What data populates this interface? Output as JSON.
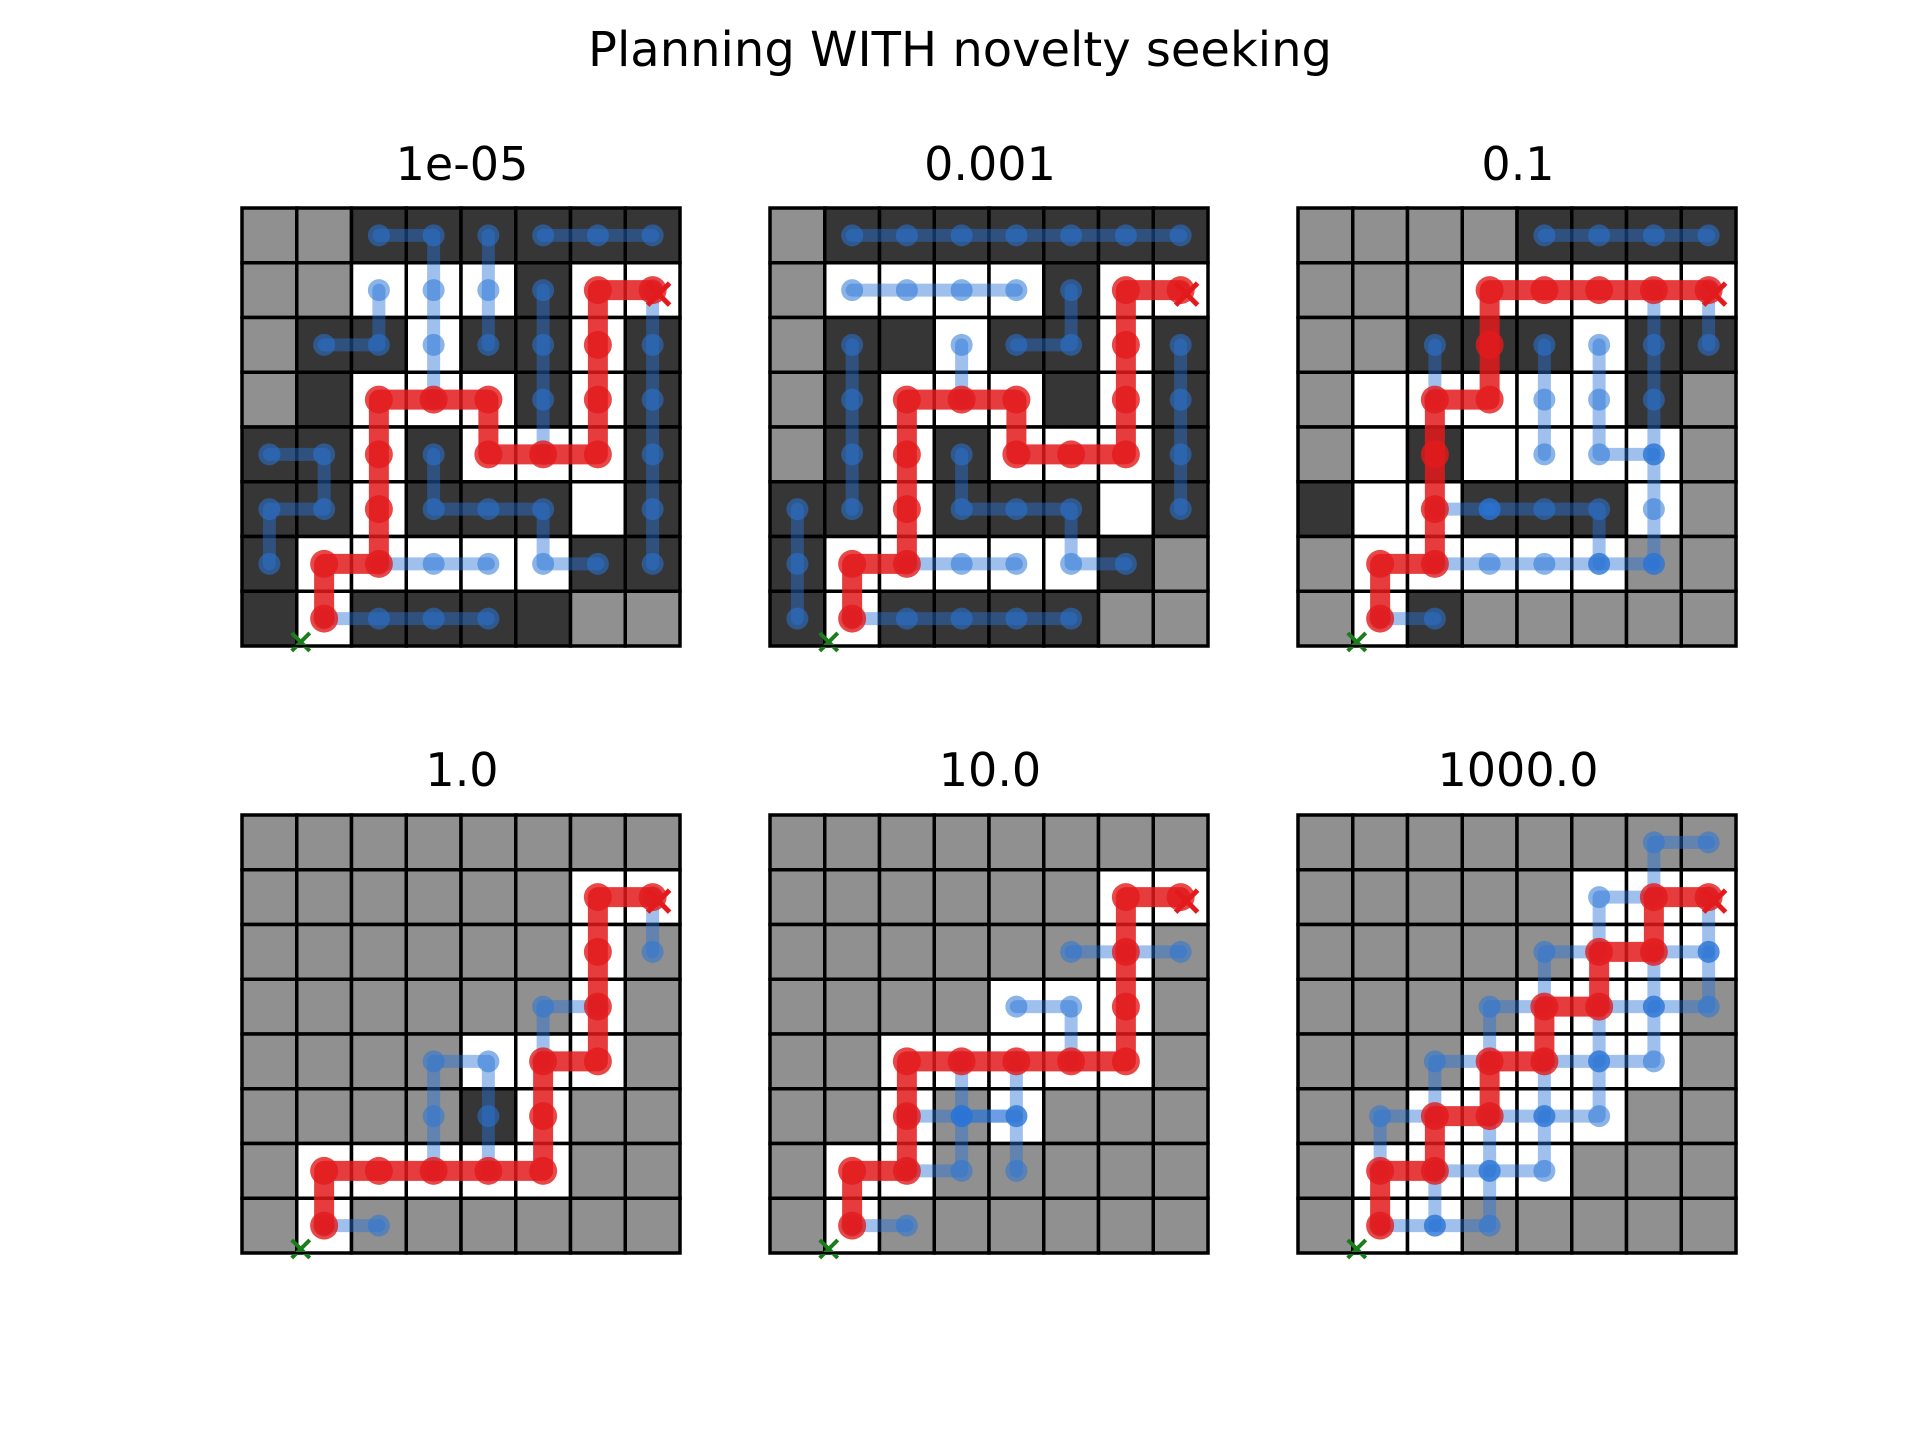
{
  "figure": {
    "title": "Planning WITH novelty seeking"
  },
  "grid": {
    "rows": 8,
    "cols": 8
  },
  "colors": {
    "wall": "#363636",
    "unexplored": "#909090",
    "free": "#ffffff",
    "gridline": "#000000",
    "explored_path": "#2a74d6",
    "final_path": "#e31a1c",
    "start_marker": "#1a7d1a",
    "goal_marker": "#e31a1c"
  },
  "panels": [
    {
      "label": "1e-05",
      "cells": [
        "UUWWWWWW",
        "UUFFFWFF",
        "UWWFWWFW",
        "UWFFFWFW",
        "WWFWFFFW",
        "WWFWWWFW",
        "WFFFFFWW",
        "WFWWWWUU"
      ],
      "final_path": [
        [
          1,
          7
        ],
        [
          1,
          6
        ],
        [
          2,
          6
        ],
        [
          2,
          5
        ],
        [
          2,
          4
        ],
        [
          2,
          3
        ],
        [
          3,
          3
        ],
        [
          4,
          3
        ],
        [
          4,
          4
        ],
        [
          5,
          4
        ],
        [
          6,
          4
        ],
        [
          6,
          3
        ],
        [
          6,
          2
        ],
        [
          6,
          1
        ],
        [
          7,
          1
        ]
      ],
      "explored_paths": [
        [
          [
            2,
            0
          ],
          [
            3,
            0
          ],
          [
            3,
            1
          ],
          [
            3,
            2
          ],
          [
            3,
            3
          ]
        ],
        [
          [
            2,
            1
          ],
          [
            2,
            2
          ],
          [
            1,
            2
          ]
        ],
        [
          [
            4,
            0
          ],
          [
            4,
            1
          ],
          [
            4,
            2
          ]
        ],
        [
          [
            5,
            0
          ],
          [
            6,
            0
          ],
          [
            7,
            0
          ]
        ],
        [
          [
            5,
            1
          ],
          [
            5,
            2
          ],
          [
            5,
            3
          ],
          [
            5,
            4
          ]
        ],
        [
          [
            7,
            1
          ],
          [
            7,
            2
          ],
          [
            7,
            3
          ],
          [
            7,
            4
          ],
          [
            7,
            5
          ],
          [
            7,
            6
          ]
        ],
        [
          [
            0,
            4
          ],
          [
            1,
            4
          ],
          [
            1,
            5
          ],
          [
            0,
            5
          ],
          [
            0,
            6
          ]
        ],
        [
          [
            1,
            7
          ],
          [
            2,
            7
          ],
          [
            3,
            7
          ],
          [
            4,
            7
          ]
        ],
        [
          [
            3,
            4
          ],
          [
            3,
            5
          ],
          [
            4,
            5
          ],
          [
            5,
            5
          ],
          [
            5,
            6
          ],
          [
            6,
            6
          ]
        ],
        [
          [
            4,
            6
          ],
          [
            3,
            6
          ],
          [
            2,
            6
          ]
        ]
      ],
      "start": [
        1,
        7
      ],
      "goal": [
        7,
        1
      ]
    },
    {
      "label": "0.001",
      "cells": [
        "UWWWWWWW",
        "UFFFFWFF",
        "UWWFWWFW",
        "UWFFFWFW",
        "UWFWFFFW",
        "WWFWWWFW",
        "WFFFFFWU",
        "WFWWWWUU"
      ],
      "final_path": [
        [
          1,
          7
        ],
        [
          1,
          6
        ],
        [
          2,
          6
        ],
        [
          2,
          5
        ],
        [
          2,
          4
        ],
        [
          2,
          3
        ],
        [
          3,
          3
        ],
        [
          4,
          3
        ],
        [
          4,
          4
        ],
        [
          5,
          4
        ],
        [
          6,
          4
        ],
        [
          6,
          3
        ],
        [
          6,
          2
        ],
        [
          6,
          1
        ],
        [
          7,
          1
        ]
      ],
      "explored_paths": [
        [
          [
            1,
            0
          ],
          [
            2,
            0
          ],
          [
            3,
            0
          ],
          [
            4,
            0
          ],
          [
            5,
            0
          ],
          [
            6,
            0
          ],
          [
            7,
            0
          ]
        ],
        [
          [
            1,
            1
          ],
          [
            2,
            1
          ],
          [
            3,
            1
          ],
          [
            4,
            1
          ]
        ],
        [
          [
            1,
            2
          ],
          [
            1,
            3
          ],
          [
            1,
            4
          ],
          [
            1,
            5
          ]
        ],
        [
          [
            0,
            5
          ],
          [
            0,
            6
          ],
          [
            0,
            7
          ]
        ],
        [
          [
            1,
            7
          ],
          [
            2,
            7
          ],
          [
            3,
            7
          ],
          [
            4,
            7
          ],
          [
            5,
            7
          ]
        ],
        [
          [
            3,
            2
          ],
          [
            3,
            3
          ]
        ],
        [
          [
            3,
            4
          ],
          [
            3,
            5
          ],
          [
            4,
            5
          ],
          [
            5,
            5
          ],
          [
            5,
            6
          ],
          [
            6,
            6
          ]
        ],
        [
          [
            4,
            6
          ],
          [
            3,
            6
          ],
          [
            2,
            6
          ]
        ],
        [
          [
            5,
            1
          ],
          [
            5,
            2
          ],
          [
            4,
            2
          ]
        ],
        [
          [
            7,
            2
          ],
          [
            7,
            3
          ],
          [
            7,
            4
          ],
          [
            7,
            5
          ]
        ]
      ],
      "start": [
        1,
        7
      ],
      "goal": [
        7,
        1
      ]
    },
    {
      "label": "0.1",
      "cells": [
        "UUUUWWWW",
        "UUUFFFFF",
        "UUWWWFWW",
        "UFFFFFWU",
        "UFWFFFFU",
        "WFFWWWFU",
        "UFFFFFUU",
        "UFWUUUUU"
      ],
      "final_path": [
        [
          1,
          7
        ],
        [
          1,
          6
        ],
        [
          2,
          6
        ],
        [
          2,
          5
        ],
        [
          2,
          4
        ],
        [
          2,
          3
        ],
        [
          3,
          3
        ],
        [
          3,
          2
        ],
        [
          3,
          1
        ],
        [
          4,
          1
        ],
        [
          5,
          1
        ],
        [
          6,
          1
        ],
        [
          7,
          1
        ]
      ],
      "explored_paths": [
        [
          [
            4,
            0
          ],
          [
            5,
            0
          ],
          [
            6,
            0
          ],
          [
            7,
            0
          ]
        ],
        [
          [
            2,
            2
          ],
          [
            2,
            3
          ]
        ],
        [
          [
            4,
            2
          ],
          [
            4,
            3
          ],
          [
            4,
            4
          ]
        ],
        [
          [
            5,
            2
          ],
          [
            5,
            3
          ],
          [
            5,
            4
          ],
          [
            6,
            4
          ]
        ],
        [
          [
            6,
            1
          ],
          [
            6,
            2
          ],
          [
            6,
            3
          ],
          [
            6,
            4
          ],
          [
            6,
            5
          ],
          [
            6,
            6
          ]
        ],
        [
          [
            7,
            1
          ],
          [
            7,
            2
          ]
        ],
        [
          [
            3,
            5
          ],
          [
            4,
            5
          ],
          [
            5,
            5
          ],
          [
            5,
            6
          ]
        ],
        [
          [
            2,
            5
          ],
          [
            3,
            5
          ]
        ],
        [
          [
            2,
            6
          ],
          [
            3,
            6
          ],
          [
            4,
            6
          ],
          [
            5,
            6
          ],
          [
            6,
            6
          ]
        ],
        [
          [
            1,
            7
          ],
          [
            2,
            7
          ]
        ]
      ],
      "start": [
        1,
        7
      ],
      "goal": [
        7,
        1
      ]
    },
    {
      "label": "1.0",
      "cells": [
        "UUUUUUUU",
        "UUUUUUFF",
        "UUUUUUFU",
        "UUUUUUFU",
        "UUUUFFFU",
        "UUUUWFUU",
        "UFFFFFUU",
        "UFUUUUUU"
      ],
      "final_path": [
        [
          1,
          7
        ],
        [
          1,
          6
        ],
        [
          2,
          6
        ],
        [
          3,
          6
        ],
        [
          4,
          6
        ],
        [
          5,
          6
        ],
        [
          5,
          5
        ],
        [
          5,
          4
        ],
        [
          6,
          4
        ],
        [
          6,
          3
        ],
        [
          6,
          2
        ],
        [
          6,
          1
        ],
        [
          7,
          1
        ]
      ],
      "explored_paths": [
        [
          [
            2,
            7
          ],
          [
            1,
            7
          ]
        ],
        [
          [
            3,
            6
          ],
          [
            3,
            5
          ],
          [
            3,
            4
          ],
          [
            4,
            4
          ],
          [
            4,
            5
          ],
          [
            4,
            6
          ]
        ],
        [
          [
            5,
            4
          ],
          [
            5,
            3
          ],
          [
            6,
            3
          ]
        ],
        [
          [
            7,
            1
          ],
          [
            7,
            2
          ]
        ]
      ],
      "start": [
        1,
        7
      ],
      "goal": [
        7,
        1
      ]
    },
    {
      "label": "10.0",
      "cells": [
        "UUUUUUUU",
        "UUUUUUFF",
        "UUUUUUFU",
        "UUUUFFFU",
        "UUFFFFFU",
        "UUFUFUUU",
        "UFFUUUUU",
        "UFUUUUUU"
      ],
      "final_path": [
        [
          1,
          7
        ],
        [
          1,
          6
        ],
        [
          2,
          6
        ],
        [
          2,
          5
        ],
        [
          2,
          4
        ],
        [
          3,
          4
        ],
        [
          4,
          4
        ],
        [
          5,
          4
        ],
        [
          6,
          4
        ],
        [
          6,
          3
        ],
        [
          6,
          2
        ],
        [
          6,
          1
        ],
        [
          7,
          1
        ]
      ],
      "explored_paths": [
        [
          [
            1,
            7
          ],
          [
            2,
            7
          ]
        ],
        [
          [
            2,
            6
          ],
          [
            3,
            6
          ],
          [
            3,
            5
          ],
          [
            4,
            5
          ],
          [
            4,
            4
          ]
        ],
        [
          [
            3,
            4
          ],
          [
            3,
            5
          ]
        ],
        [
          [
            4,
            3
          ],
          [
            5,
            3
          ],
          [
            5,
            4
          ]
        ],
        [
          [
            5,
            2
          ],
          [
            6,
            2
          ],
          [
            7,
            2
          ]
        ],
        [
          [
            2,
            5
          ],
          [
            3,
            5
          ],
          [
            4,
            5
          ],
          [
            4,
            6
          ]
        ]
      ],
      "start": [
        1,
        7
      ],
      "goal": [
        7,
        1
      ]
    },
    {
      "label": "1000.0",
      "cells": [
        "UUUUUUUU",
        "UUUUUFFF",
        "UUUUUFFF",
        "UUUUFFFU",
        "UUUFFFFU",
        "UUFFFFUU",
        "UFFFFUUU",
        "UFFUUUUU"
      ],
      "final_path": [
        [
          1,
          7
        ],
        [
          1,
          6
        ],
        [
          2,
          6
        ],
        [
          2,
          5
        ],
        [
          3,
          5
        ],
        [
          3,
          4
        ],
        [
          4,
          4
        ],
        [
          4,
          3
        ],
        [
          5,
          3
        ],
        [
          5,
          2
        ],
        [
          6,
          2
        ],
        [
          6,
          1
        ],
        [
          7,
          1
        ]
      ],
      "explored_paths": [
        [
          [
            1,
            6
          ],
          [
            1,
            5
          ],
          [
            2,
            5
          ],
          [
            2,
            4
          ],
          [
            3,
            4
          ],
          [
            3,
            3
          ],
          [
            4,
            3
          ],
          [
            4,
            2
          ],
          [
            5,
            2
          ],
          [
            5,
            1
          ],
          [
            6,
            1
          ],
          [
            6,
            0
          ],
          [
            7,
            0
          ]
        ],
        [
          [
            2,
            7
          ],
          [
            3,
            7
          ],
          [
            3,
            6
          ],
          [
            4,
            6
          ],
          [
            4,
            5
          ],
          [
            5,
            5
          ],
          [
            5,
            4
          ],
          [
            6,
            4
          ],
          [
            6,
            3
          ],
          [
            7,
            3
          ],
          [
            7,
            2
          ]
        ],
        [
          [
            2,
            6
          ],
          [
            3,
            6
          ],
          [
            3,
            5
          ],
          [
            4,
            5
          ],
          [
            4,
            4
          ],
          [
            5,
            4
          ],
          [
            5,
            3
          ],
          [
            6,
            3
          ],
          [
            6,
            2
          ],
          [
            7,
            2
          ],
          [
            7,
            1
          ]
        ],
        [
          [
            1,
            7
          ],
          [
            2,
            7
          ],
          [
            2,
            6
          ]
        ]
      ],
      "start": [
        1,
        7
      ],
      "goal": [
        7,
        1
      ]
    }
  ]
}
